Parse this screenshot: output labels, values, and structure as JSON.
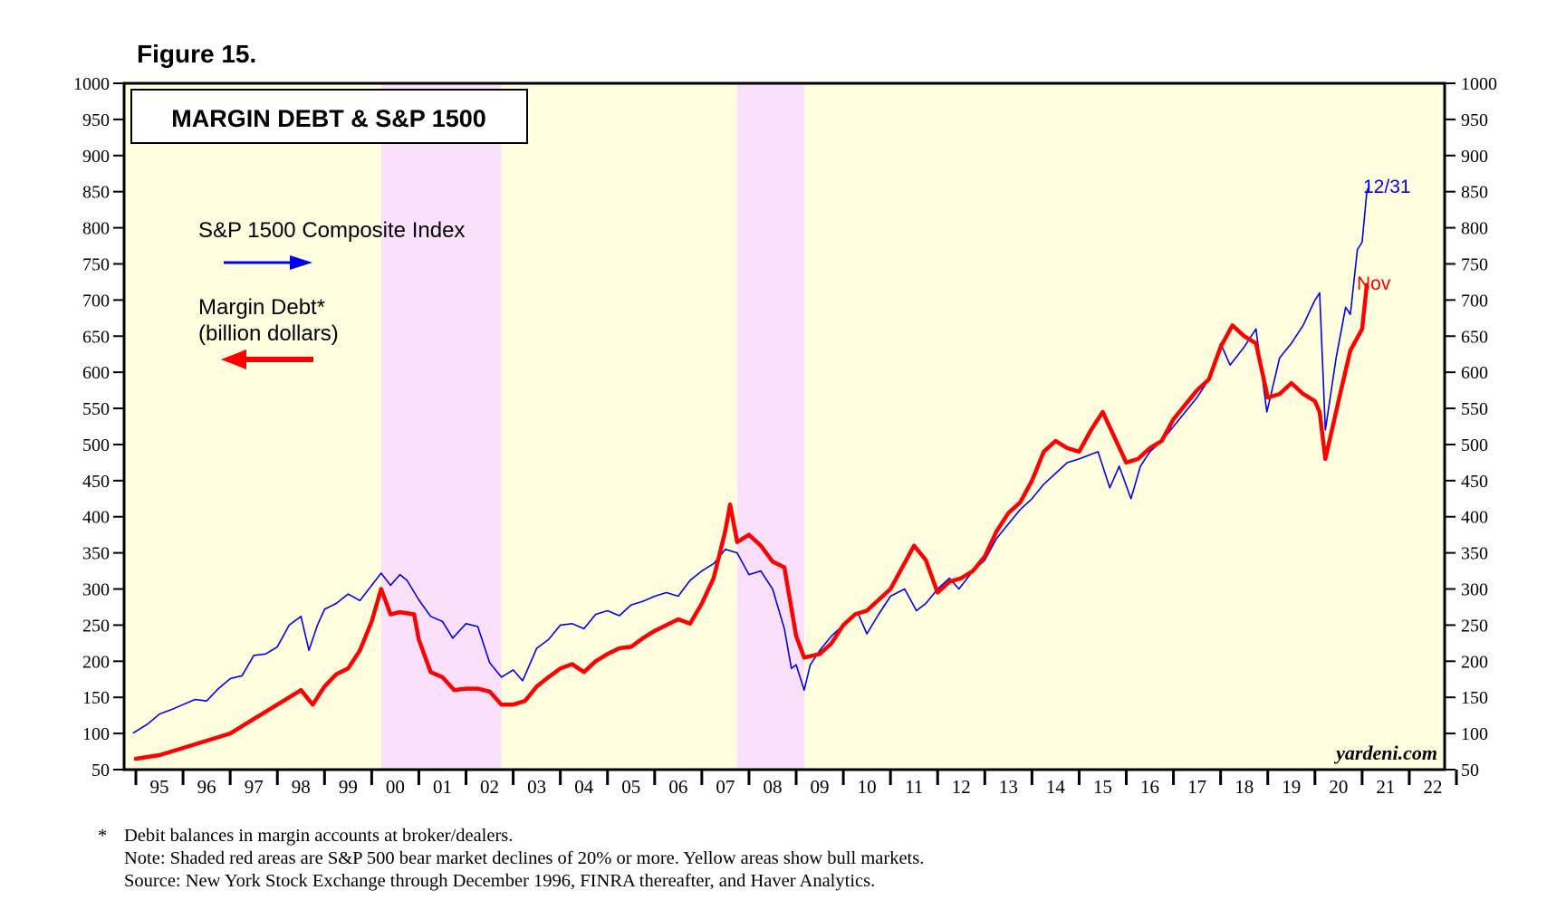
{
  "figure_label": "Figure 15.",
  "footnotes": {
    "star": "*",
    "line1": "Debit balances in margin accounts at broker/dealers.",
    "line2": "Note: Shaded red areas are S&P 500 bear market declines of 20% or more. Yellow areas show bull markets.",
    "line3": "Source: New York Stock Exchange through December 1996, FINRA thereafter, and Haver Analytics."
  },
  "chart_data": {
    "type": "line",
    "title": "MARGIN DEBT & S&P 1500",
    "watermark": "yardeni.com",
    "x_range": [
      1994.75,
      2022.75
    ],
    "ylim": [
      50,
      1000
    ],
    "yticks": [
      50,
      100,
      150,
      200,
      250,
      300,
      350,
      400,
      450,
      500,
      550,
      600,
      650,
      700,
      750,
      800,
      850,
      900,
      950,
      1000
    ],
    "ytick_labels": [
      "50",
      "100",
      "150",
      "200",
      "250",
      "300",
      "350",
      "400",
      "450",
      "500",
      "550",
      "600",
      "650",
      "700",
      "750",
      "800",
      "850",
      "900",
      "950",
      "1000"
    ],
    "year_labels": [
      "95",
      "96",
      "97",
      "98",
      "99",
      "00",
      "01",
      "02",
      "03",
      "04",
      "05",
      "06",
      "07",
      "08",
      "09",
      "10",
      "11",
      "12",
      "13",
      "14",
      "15",
      "16",
      "17",
      "18",
      "19",
      "20",
      "21",
      "22"
    ],
    "shading": {
      "bull_color": "#ffffe0",
      "bear_color": "#fbe0fb",
      "bear_periods": [
        [
          2000.2,
          2002.75
        ],
        [
          2007.75,
          2009.17
        ]
      ]
    },
    "series": [
      {
        "name": "S&P 1500 Composite Index",
        "color": "#0000ee",
        "end_label": "12/31",
        "points": [
          [
            1994.95,
            101
          ],
          [
            1995.25,
            113
          ],
          [
            1995.5,
            127
          ],
          [
            1995.75,
            133
          ],
          [
            1996.0,
            140
          ],
          [
            1996.25,
            147
          ],
          [
            1996.5,
            145
          ],
          [
            1996.75,
            162
          ],
          [
            1997.0,
            176
          ],
          [
            1997.25,
            180
          ],
          [
            1997.5,
            208
          ],
          [
            1997.75,
            210
          ],
          [
            1998.0,
            220
          ],
          [
            1998.25,
            250
          ],
          [
            1998.5,
            262
          ],
          [
            1998.67,
            215
          ],
          [
            1998.85,
            250
          ],
          [
            1999.0,
            272
          ],
          [
            1999.25,
            280
          ],
          [
            1999.5,
            293
          ],
          [
            1999.75,
            284
          ],
          [
            2000.0,
            305
          ],
          [
            2000.2,
            322
          ],
          [
            2000.4,
            305
          ],
          [
            2000.6,
            320
          ],
          [
            2000.75,
            312
          ],
          [
            2001.0,
            285
          ],
          [
            2001.25,
            262
          ],
          [
            2001.5,
            255
          ],
          [
            2001.72,
            232
          ],
          [
            2002.0,
            252
          ],
          [
            2002.25,
            248
          ],
          [
            2002.5,
            198
          ],
          [
            2002.75,
            178
          ],
          [
            2003.0,
            188
          ],
          [
            2003.2,
            173
          ],
          [
            2003.5,
            218
          ],
          [
            2003.75,
            230
          ],
          [
            2004.0,
            250
          ],
          [
            2004.25,
            252
          ],
          [
            2004.5,
            245
          ],
          [
            2004.75,
            265
          ],
          [
            2005.0,
            270
          ],
          [
            2005.25,
            263
          ],
          [
            2005.5,
            278
          ],
          [
            2005.75,
            283
          ],
          [
            2006.0,
            290
          ],
          [
            2006.25,
            295
          ],
          [
            2006.5,
            290
          ],
          [
            2006.75,
            312
          ],
          [
            2007.0,
            325
          ],
          [
            2007.25,
            335
          ],
          [
            2007.5,
            355
          ],
          [
            2007.75,
            350
          ],
          [
            2008.0,
            320
          ],
          [
            2008.25,
            325
          ],
          [
            2008.5,
            300
          ],
          [
            2008.75,
            245
          ],
          [
            2008.9,
            190
          ],
          [
            2009.0,
            195
          ],
          [
            2009.17,
            160
          ],
          [
            2009.3,
            195
          ],
          [
            2009.5,
            215
          ],
          [
            2009.75,
            235
          ],
          [
            2010.0,
            250
          ],
          [
            2010.3,
            268
          ],
          [
            2010.5,
            238
          ],
          [
            2010.75,
            265
          ],
          [
            2011.0,
            290
          ],
          [
            2011.3,
            300
          ],
          [
            2011.55,
            270
          ],
          [
            2011.75,
            280
          ],
          [
            2012.0,
            300
          ],
          [
            2012.25,
            315
          ],
          [
            2012.45,
            300
          ],
          [
            2012.75,
            325
          ],
          [
            2013.0,
            340
          ],
          [
            2013.25,
            370
          ],
          [
            2013.5,
            390
          ],
          [
            2013.75,
            410
          ],
          [
            2014.0,
            425
          ],
          [
            2014.25,
            445
          ],
          [
            2014.5,
            460
          ],
          [
            2014.75,
            475
          ],
          [
            2015.0,
            480
          ],
          [
            2015.4,
            490
          ],
          [
            2015.65,
            440
          ],
          [
            2015.85,
            470
          ],
          [
            2016.1,
            425
          ],
          [
            2016.3,
            470
          ],
          [
            2016.5,
            490
          ],
          [
            2016.75,
            505
          ],
          [
            2017.0,
            525
          ],
          [
            2017.25,
            545
          ],
          [
            2017.5,
            565
          ],
          [
            2017.75,
            590
          ],
          [
            2018.0,
            640
          ],
          [
            2018.2,
            610
          ],
          [
            2018.5,
            635
          ],
          [
            2018.75,
            660
          ],
          [
            2018.98,
            545
          ],
          [
            2019.25,
            620
          ],
          [
            2019.5,
            640
          ],
          [
            2019.75,
            665
          ],
          [
            2020.0,
            700
          ],
          [
            2020.1,
            710
          ],
          [
            2020.22,
            520
          ],
          [
            2020.45,
            620
          ],
          [
            2020.65,
            690
          ],
          [
            2020.75,
            680
          ],
          [
            2020.9,
            770
          ],
          [
            2021.0,
            780
          ],
          [
            2021.1,
            850
          ],
          [
            2021.15,
            858
          ]
        ]
      },
      {
        "name": "Margin Debt*",
        "name_line2": "(billion dollars)",
        "color": "#ff0000",
        "end_label": "Nov",
        "points": [
          [
            1995.0,
            65
          ],
          [
            1995.5,
            70
          ],
          [
            1996.0,
            80
          ],
          [
            1996.5,
            90
          ],
          [
            1997.0,
            100
          ],
          [
            1997.5,
            120
          ],
          [
            1997.75,
            130
          ],
          [
            1998.0,
            140
          ],
          [
            1998.25,
            150
          ],
          [
            1998.5,
            160
          ],
          [
            1998.75,
            140
          ],
          [
            1999.0,
            165
          ],
          [
            1999.25,
            182
          ],
          [
            1999.5,
            190
          ],
          [
            1999.75,
            215
          ],
          [
            2000.0,
            255
          ],
          [
            2000.2,
            300
          ],
          [
            2000.4,
            265
          ],
          [
            2000.6,
            268
          ],
          [
            2000.9,
            265
          ],
          [
            2001.0,
            230
          ],
          [
            2001.25,
            185
          ],
          [
            2001.5,
            178
          ],
          [
            2001.75,
            160
          ],
          [
            2002.0,
            162
          ],
          [
            2002.25,
            162
          ],
          [
            2002.5,
            158
          ],
          [
            2002.75,
            140
          ],
          [
            2003.0,
            140
          ],
          [
            2003.25,
            145
          ],
          [
            2003.5,
            165
          ],
          [
            2003.75,
            178
          ],
          [
            2004.0,
            190
          ],
          [
            2004.25,
            196
          ],
          [
            2004.5,
            185
          ],
          [
            2004.75,
            200
          ],
          [
            2005.0,
            210
          ],
          [
            2005.25,
            218
          ],
          [
            2005.5,
            220
          ],
          [
            2005.75,
            232
          ],
          [
            2006.0,
            242
          ],
          [
            2006.25,
            250
          ],
          [
            2006.5,
            258
          ],
          [
            2006.75,
            252
          ],
          [
            2007.0,
            280
          ],
          [
            2007.25,
            315
          ],
          [
            2007.5,
            381
          ],
          [
            2007.6,
            417
          ],
          [
            2007.75,
            365
          ],
          [
            2008.0,
            375
          ],
          [
            2008.25,
            360
          ],
          [
            2008.5,
            338
          ],
          [
            2008.75,
            330
          ],
          [
            2009.0,
            235
          ],
          [
            2009.17,
            205
          ],
          [
            2009.5,
            210
          ],
          [
            2009.75,
            225
          ],
          [
            2010.0,
            250
          ],
          [
            2010.25,
            265
          ],
          [
            2010.5,
            270
          ],
          [
            2010.75,
            285
          ],
          [
            2011.0,
            300
          ],
          [
            2011.25,
            330
          ],
          [
            2011.5,
            360
          ],
          [
            2011.75,
            340
          ],
          [
            2012.0,
            295
          ],
          [
            2012.25,
            310
          ],
          [
            2012.5,
            315
          ],
          [
            2012.75,
            325
          ],
          [
            2013.0,
            345
          ],
          [
            2013.25,
            380
          ],
          [
            2013.5,
            405
          ],
          [
            2013.75,
            420
          ],
          [
            2014.0,
            450
          ],
          [
            2014.25,
            490
          ],
          [
            2014.5,
            505
          ],
          [
            2014.75,
            495
          ],
          [
            2015.0,
            490
          ],
          [
            2015.25,
            520
          ],
          [
            2015.5,
            545
          ],
          [
            2015.75,
            510
          ],
          [
            2016.0,
            475
          ],
          [
            2016.25,
            480
          ],
          [
            2016.5,
            495
          ],
          [
            2016.75,
            505
          ],
          [
            2017.0,
            535
          ],
          [
            2017.25,
            555
          ],
          [
            2017.5,
            575
          ],
          [
            2017.75,
            590
          ],
          [
            2018.0,
            635
          ],
          [
            2018.25,
            665
          ],
          [
            2018.5,
            650
          ],
          [
            2018.75,
            640
          ],
          [
            2019.0,
            565
          ],
          [
            2019.25,
            570
          ],
          [
            2019.5,
            585
          ],
          [
            2019.75,
            570
          ],
          [
            2020.0,
            560
          ],
          [
            2020.1,
            545
          ],
          [
            2020.22,
            480
          ],
          [
            2020.5,
            560
          ],
          [
            2020.75,
            630
          ],
          [
            2021.0,
            660
          ],
          [
            2021.1,
            721
          ]
        ]
      }
    ]
  }
}
